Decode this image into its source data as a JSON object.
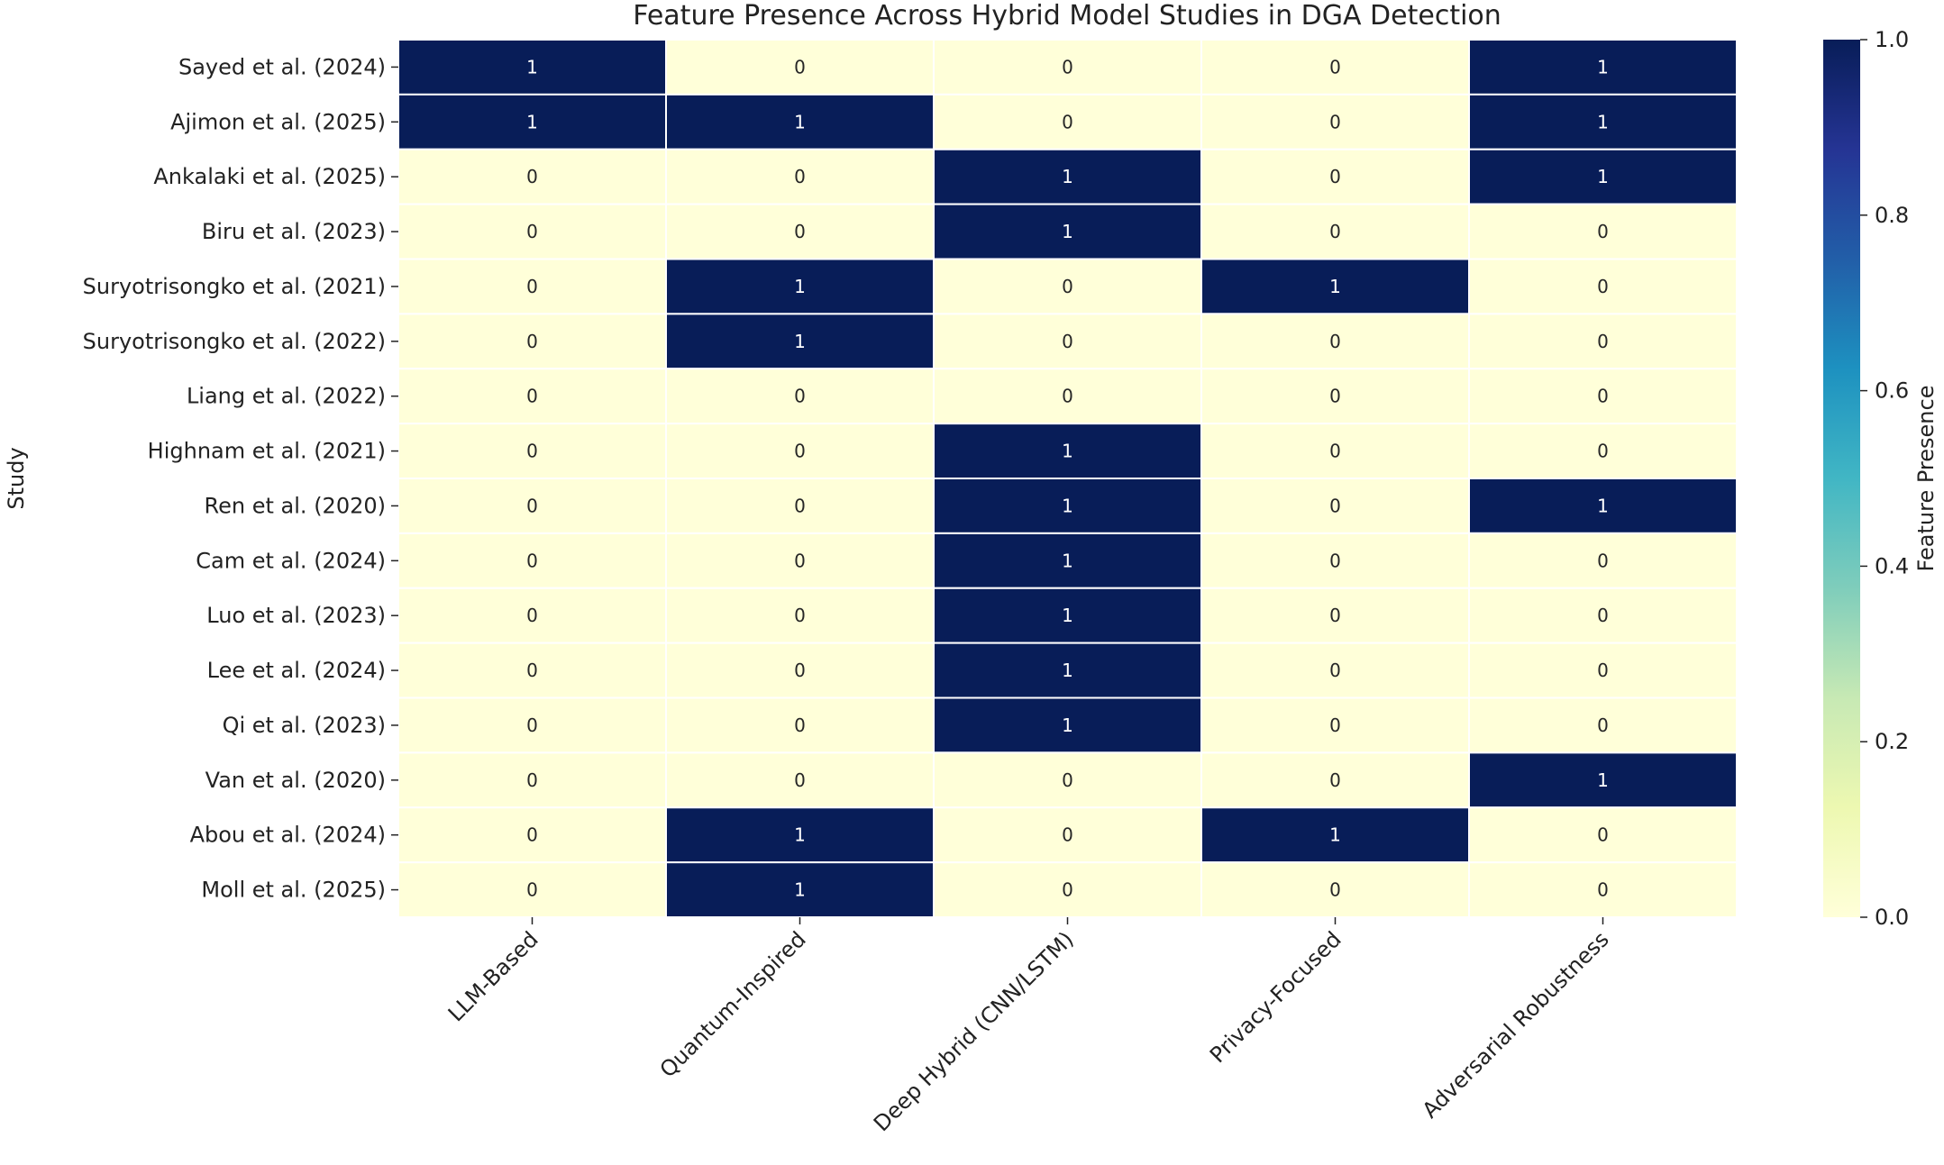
{
  "chart_data": {
    "type": "heatmap",
    "title": "Feature Presence Across Hybrid Model Studies in DGA Detection",
    "xlabel": "",
    "ylabel": "Study",
    "colorbar_label": "Feature Presence",
    "colorbar_ticks": [
      "0.0",
      "0.2",
      "0.4",
      "0.6",
      "0.8",
      "1.0"
    ],
    "colormap": "YlGnBu",
    "vmin": 0,
    "vmax": 1,
    "colors": {
      "low": "#ffffd9",
      "high": "#081d58"
    },
    "columns": [
      "LLM-Based",
      "Quantum-Inspired",
      "Deep Hybrid (CNN/LSTM)",
      "Privacy-Focused",
      "Adversarial Robustness"
    ],
    "rows": [
      "Sayed et al. (2024)",
      "Ajimon et al. (2025)",
      "Ankalaki et al. (2025)",
      "Biru et al. (2023)",
      "Suryotrisongko et al. (2021)",
      "Suryotrisongko et al. (2022)",
      "Liang et al. (2022)",
      "Highnam et al. (2021)",
      "Ren et al. (2020)",
      "Cam et al. (2024)",
      "Luo et al. (2023)",
      "Lee et al. (2024)",
      "Qi et al. (2023)",
      "Van et al. (2020)",
      "Abou et al. (2024)",
      "Moll et al. (2025)"
    ],
    "values": [
      [
        1,
        0,
        0,
        0,
        1
      ],
      [
        1,
        1,
        0,
        0,
        1
      ],
      [
        0,
        0,
        1,
        0,
        1
      ],
      [
        0,
        0,
        1,
        0,
        0
      ],
      [
        0,
        1,
        0,
        1,
        0
      ],
      [
        0,
        1,
        0,
        0,
        0
      ],
      [
        0,
        0,
        0,
        0,
        0
      ],
      [
        0,
        0,
        1,
        0,
        0
      ],
      [
        0,
        0,
        1,
        0,
        1
      ],
      [
        0,
        0,
        1,
        0,
        0
      ],
      [
        0,
        0,
        1,
        0,
        0
      ],
      [
        0,
        0,
        1,
        0,
        0
      ],
      [
        0,
        0,
        1,
        0,
        0
      ],
      [
        0,
        0,
        0,
        0,
        1
      ],
      [
        0,
        1,
        0,
        1,
        0
      ],
      [
        0,
        1,
        0,
        0,
        0
      ]
    ]
  }
}
